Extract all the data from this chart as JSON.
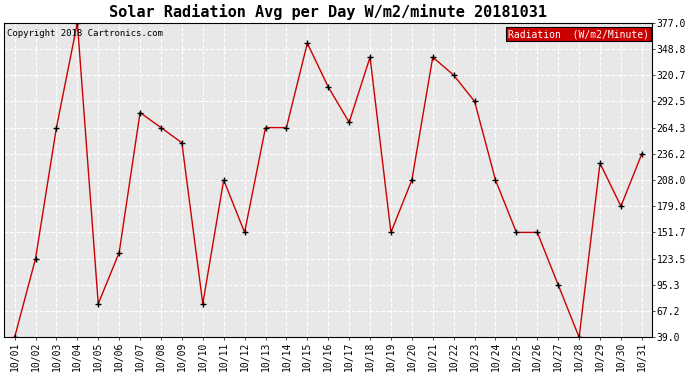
{
  "title": "Solar Radiation Avg per Day W/m2/minute 20181031",
  "copyright": "Copyright 2018 Cartronics.com",
  "legend_label": "Radiation  (W/m2/Minute)",
  "dates": [
    "10/01",
    "10/02",
    "10/03",
    "10/04",
    "10/05",
    "10/06",
    "10/07",
    "10/08",
    "10/09",
    "10/10",
    "10/11",
    "10/12",
    "10/13",
    "10/14",
    "10/15",
    "10/16",
    "10/17",
    "10/18",
    "10/19",
    "10/20",
    "10/21",
    "10/22",
    "10/23",
    "10/24",
    "10/25",
    "10/26",
    "10/27",
    "10/28",
    "10/29",
    "10/30",
    "10/31"
  ],
  "values": [
    39.0,
    123.5,
    264.3,
    377.0,
    75.0,
    130.0,
    280.5,
    264.3,
    248.0,
    75.0,
    208.0,
    151.7,
    264.3,
    264.3,
    355.0,
    308.0,
    270.0,
    340.0,
    151.7,
    208.0,
    340.0,
    320.7,
    292.5,
    208.0,
    151.7,
    151.7,
    95.3,
    39.0,
    226.0,
    179.8,
    236.2
  ],
  "ylim": [
    39.0,
    377.0
  ],
  "yticks": [
    377.0,
    348.8,
    320.7,
    292.5,
    264.3,
    236.2,
    208.0,
    179.8,
    151.7,
    123.5,
    95.3,
    67.2,
    39.0
  ],
  "line_color": "#cc0000",
  "marker_color": "#000000",
  "bg_color": "#ffffff",
  "plot_bg_color": "#e8e8e8",
  "grid_color": "#ffffff",
  "title_fontsize": 11,
  "tick_fontsize": 7,
  "legend_bg": "#cc0000",
  "legend_text_color": "#ffffff"
}
